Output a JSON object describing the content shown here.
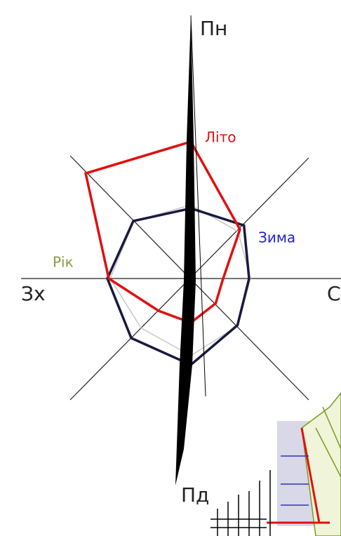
{
  "chart_data": {
    "type": "radar",
    "categories": [
      "Пн",
      null,
      "С",
      null,
      "Пд",
      null,
      "Зх",
      null
    ],
    "rlim": [
      0,
      220
    ],
    "series": [
      {
        "name": "Рік",
        "color": "#c8c8c8",
        "label_color": "#8a9a4a",
        "values": [
          105,
          95,
          85,
          95,
          110,
          100,
          115,
          115
        ]
      },
      {
        "name": "Зима",
        "color": "#1a1a40",
        "label_color": "#1f1fd0",
        "values": [
          100,
          107,
          83,
          94,
          123,
          120,
          119,
          116
        ]
      },
      {
        "name": "Літо",
        "color": "#e01010",
        "label_color": "#e01010",
        "values": [
          195,
          99,
          46,
          50,
          63,
          65,
          117,
          212
        ]
      }
    ]
  }
}
